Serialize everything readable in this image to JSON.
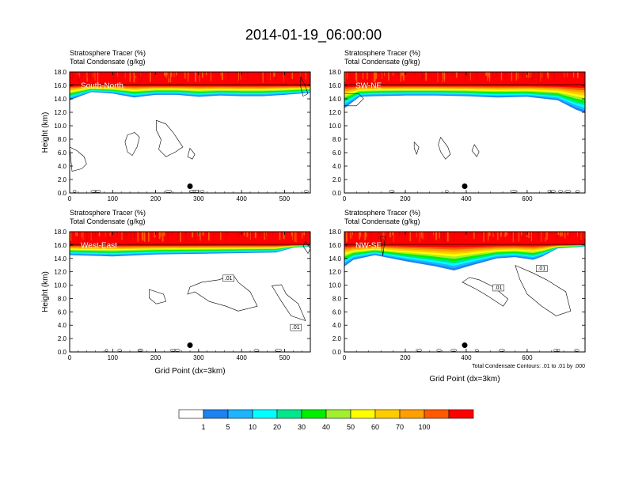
{
  "figure": {
    "title": "2014-01-19_06:00:00",
    "footnote": "Total Condensate Contours: .01 to .01 by .000"
  },
  "chart_data": [
    {
      "type": "heatmap",
      "panel": "South-North",
      "title_lines": [
        "Stratosphere Tracer   (%)",
        "Total Condensate   (g/kg)"
      ],
      "ylabel": "Height (km)",
      "xlabel": "",
      "xlim": [
        0,
        560
      ],
      "ylim": [
        0,
        18
      ],
      "xticks": [
        "0",
        "100",
        "200",
        "300",
        "400",
        "500"
      ],
      "yticks": [
        "0.0",
        "2.0",
        "4.0",
        "6.0",
        "8.0",
        "10.0",
        "12.0",
        "14.0",
        "16.0",
        "18.0"
      ],
      "tracer_band": {
        "x": [
          0,
          50,
          100,
          150,
          200,
          250,
          300,
          350,
          400,
          450,
          500,
          560
        ],
        "bottom_km": [
          13.8,
          15.0,
          14.8,
          14.2,
          14.6,
          14.6,
          14.3,
          14.5,
          14.4,
          14.4,
          14.6,
          14.9
        ]
      },
      "marker": {
        "x": 280,
        "y": 1.0
      },
      "contour_labels": []
    },
    {
      "type": "heatmap",
      "panel": "SW-NE",
      "title_lines": [
        "Stratosphere Tracer   (%)",
        "Total Condensate   (g/kg)"
      ],
      "ylabel": "",
      "xlabel": "",
      "xlim": [
        0,
        790
      ],
      "ylim": [
        0,
        18
      ],
      "xticks": [
        "0",
        "200",
        "400",
        "600"
      ],
      "yticks": [
        "0.0",
        "2.0",
        "4.0",
        "6.0",
        "8.0",
        "10.0",
        "12.0",
        "14.0",
        "16.0",
        "18.0"
      ],
      "tracer_band": {
        "x": [
          0,
          50,
          100,
          200,
          300,
          400,
          500,
          600,
          700,
          760,
          790
        ],
        "bottom_km": [
          12.6,
          14.3,
          14.4,
          14.5,
          14.5,
          14.4,
          14.2,
          14.3,
          13.8,
          12.4,
          11.9
        ]
      },
      "marker": {
        "x": 395,
        "y": 1.0
      },
      "contour_labels": []
    },
    {
      "type": "heatmap",
      "panel": "West-East",
      "title_lines": [
        "Stratosphere Tracer   (%)",
        "Total Condensate   (g/kg)"
      ],
      "ylabel": "Height (km)",
      "xlabel": "Grid Point (dx=3km)",
      "xlim": [
        0,
        560
      ],
      "ylim": [
        0,
        18
      ],
      "xticks": [
        "0",
        "100",
        "200",
        "300",
        "400",
        "500"
      ],
      "yticks": [
        "0.0",
        "2.0",
        "4.0",
        "6.0",
        "8.0",
        "10.0",
        "12.0",
        "14.0",
        "16.0",
        "18.0"
      ],
      "tracer_band": {
        "x": [
          0,
          100,
          200,
          300,
          400,
          480,
          520,
          560
        ],
        "bottom_km": [
          14.5,
          14.3,
          14.6,
          14.7,
          14.8,
          14.9,
          15.6,
          15.8
        ]
      },
      "marker": {
        "x": 280,
        "y": 1.0
      },
      "contour_labels": [
        ".01",
        ".01"
      ]
    },
    {
      "type": "heatmap",
      "panel": "NW-SE",
      "title_lines": [
        "Stratosphere Tracer   (%)",
        "Total Condensate   (g/kg)"
      ],
      "ylabel": "",
      "xlabel": "Grid Point (dx=3km)",
      "xlim": [
        0,
        790
      ],
      "ylim": [
        0,
        18
      ],
      "xticks": [
        "0",
        "200",
        "400",
        "600"
      ],
      "yticks": [
        "0.0",
        "2.0",
        "4.0",
        "6.0",
        "8.0",
        "10.0",
        "12.0",
        "14.0",
        "16.0",
        "18.0"
      ],
      "tracer_band": {
        "x": [
          0,
          30,
          100,
          200,
          300,
          360,
          420,
          500,
          560,
          620,
          650,
          700,
          790
        ],
        "bottom_km": [
          12.8,
          13.8,
          14.5,
          13.6,
          12.8,
          12.2,
          13.0,
          14.0,
          14.2,
          13.8,
          14.3,
          15.5,
          15.8
        ]
      },
      "marker": {
        "x": 395,
        "y": 1.0
      },
      "contour_labels": [
        ".01",
        ".01"
      ]
    }
  ],
  "colorbar": {
    "labels": [
      "1",
      "5",
      "10",
      "20",
      "30",
      "40",
      "50",
      "60",
      "70",
      "100"
    ],
    "colors": [
      "#ffffff",
      "#1e82f0",
      "#1eb4ff",
      "#00ffff",
      "#00e88c",
      "#00f000",
      "#a0f030",
      "#ffff00",
      "#ffcc00",
      "#ffa000",
      "#ff5a00",
      "#ff0000"
    ]
  }
}
